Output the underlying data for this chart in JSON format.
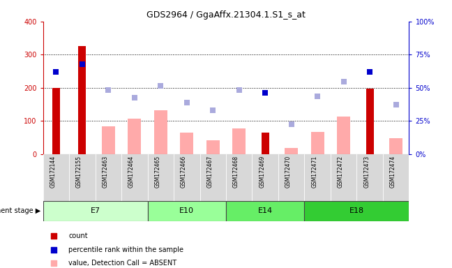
{
  "title": "GDS2964 / GgaAffx.21304.1.S1_s_at",
  "samples": [
    "GSM172144",
    "GSM172155",
    "GSM172463",
    "GSM172464",
    "GSM172465",
    "GSM172466",
    "GSM172467",
    "GSM172468",
    "GSM172469",
    "GSM172470",
    "GSM172471",
    "GSM172472",
    "GSM172473",
    "GSM172474"
  ],
  "count_values": [
    200,
    325,
    null,
    null,
    null,
    null,
    null,
    null,
    65,
    null,
    null,
    null,
    197,
    null
  ],
  "count_color": "#cc0000",
  "absent_value": [
    null,
    null,
    83,
    107,
    132,
    65,
    42,
    78,
    null,
    18,
    67,
    113,
    null,
    48
  ],
  "absent_value_color": "#ffaaaa",
  "rank_absent": [
    null,
    null,
    193,
    170,
    205,
    155,
    132,
    193,
    null,
    90,
    175,
    218,
    null,
    148
  ],
  "rank_absent_color": "#aaaadd",
  "percentile_rank": [
    247,
    272,
    null,
    null,
    null,
    null,
    null,
    null,
    185,
    null,
    null,
    null,
    247,
    null
  ],
  "percentile_rank_color": "#0000cc",
  "stage_groups": [
    {
      "label": "E7",
      "start": 0,
      "end": 4,
      "color": "#ccffcc"
    },
    {
      "label": "E10",
      "start": 4,
      "end": 7,
      "color": "#99ff99"
    },
    {
      "label": "E14",
      "start": 7,
      "end": 10,
      "color": "#66ee66"
    },
    {
      "label": "E18",
      "start": 10,
      "end": 14,
      "color": "#33cc33"
    }
  ],
  "ylim_left": [
    0,
    400
  ],
  "ylim_right": [
    0,
    100
  ],
  "yticks_left": [
    0,
    100,
    200,
    300,
    400
  ],
  "yticks_right": [
    0,
    25,
    50,
    75,
    100
  ],
  "ylabel_left_color": "#cc0000",
  "ylabel_right_color": "#0000cc",
  "grid_yticks": [
    100,
    200,
    300
  ],
  "bar_width": 0.5,
  "count_bar_width": 0.3
}
